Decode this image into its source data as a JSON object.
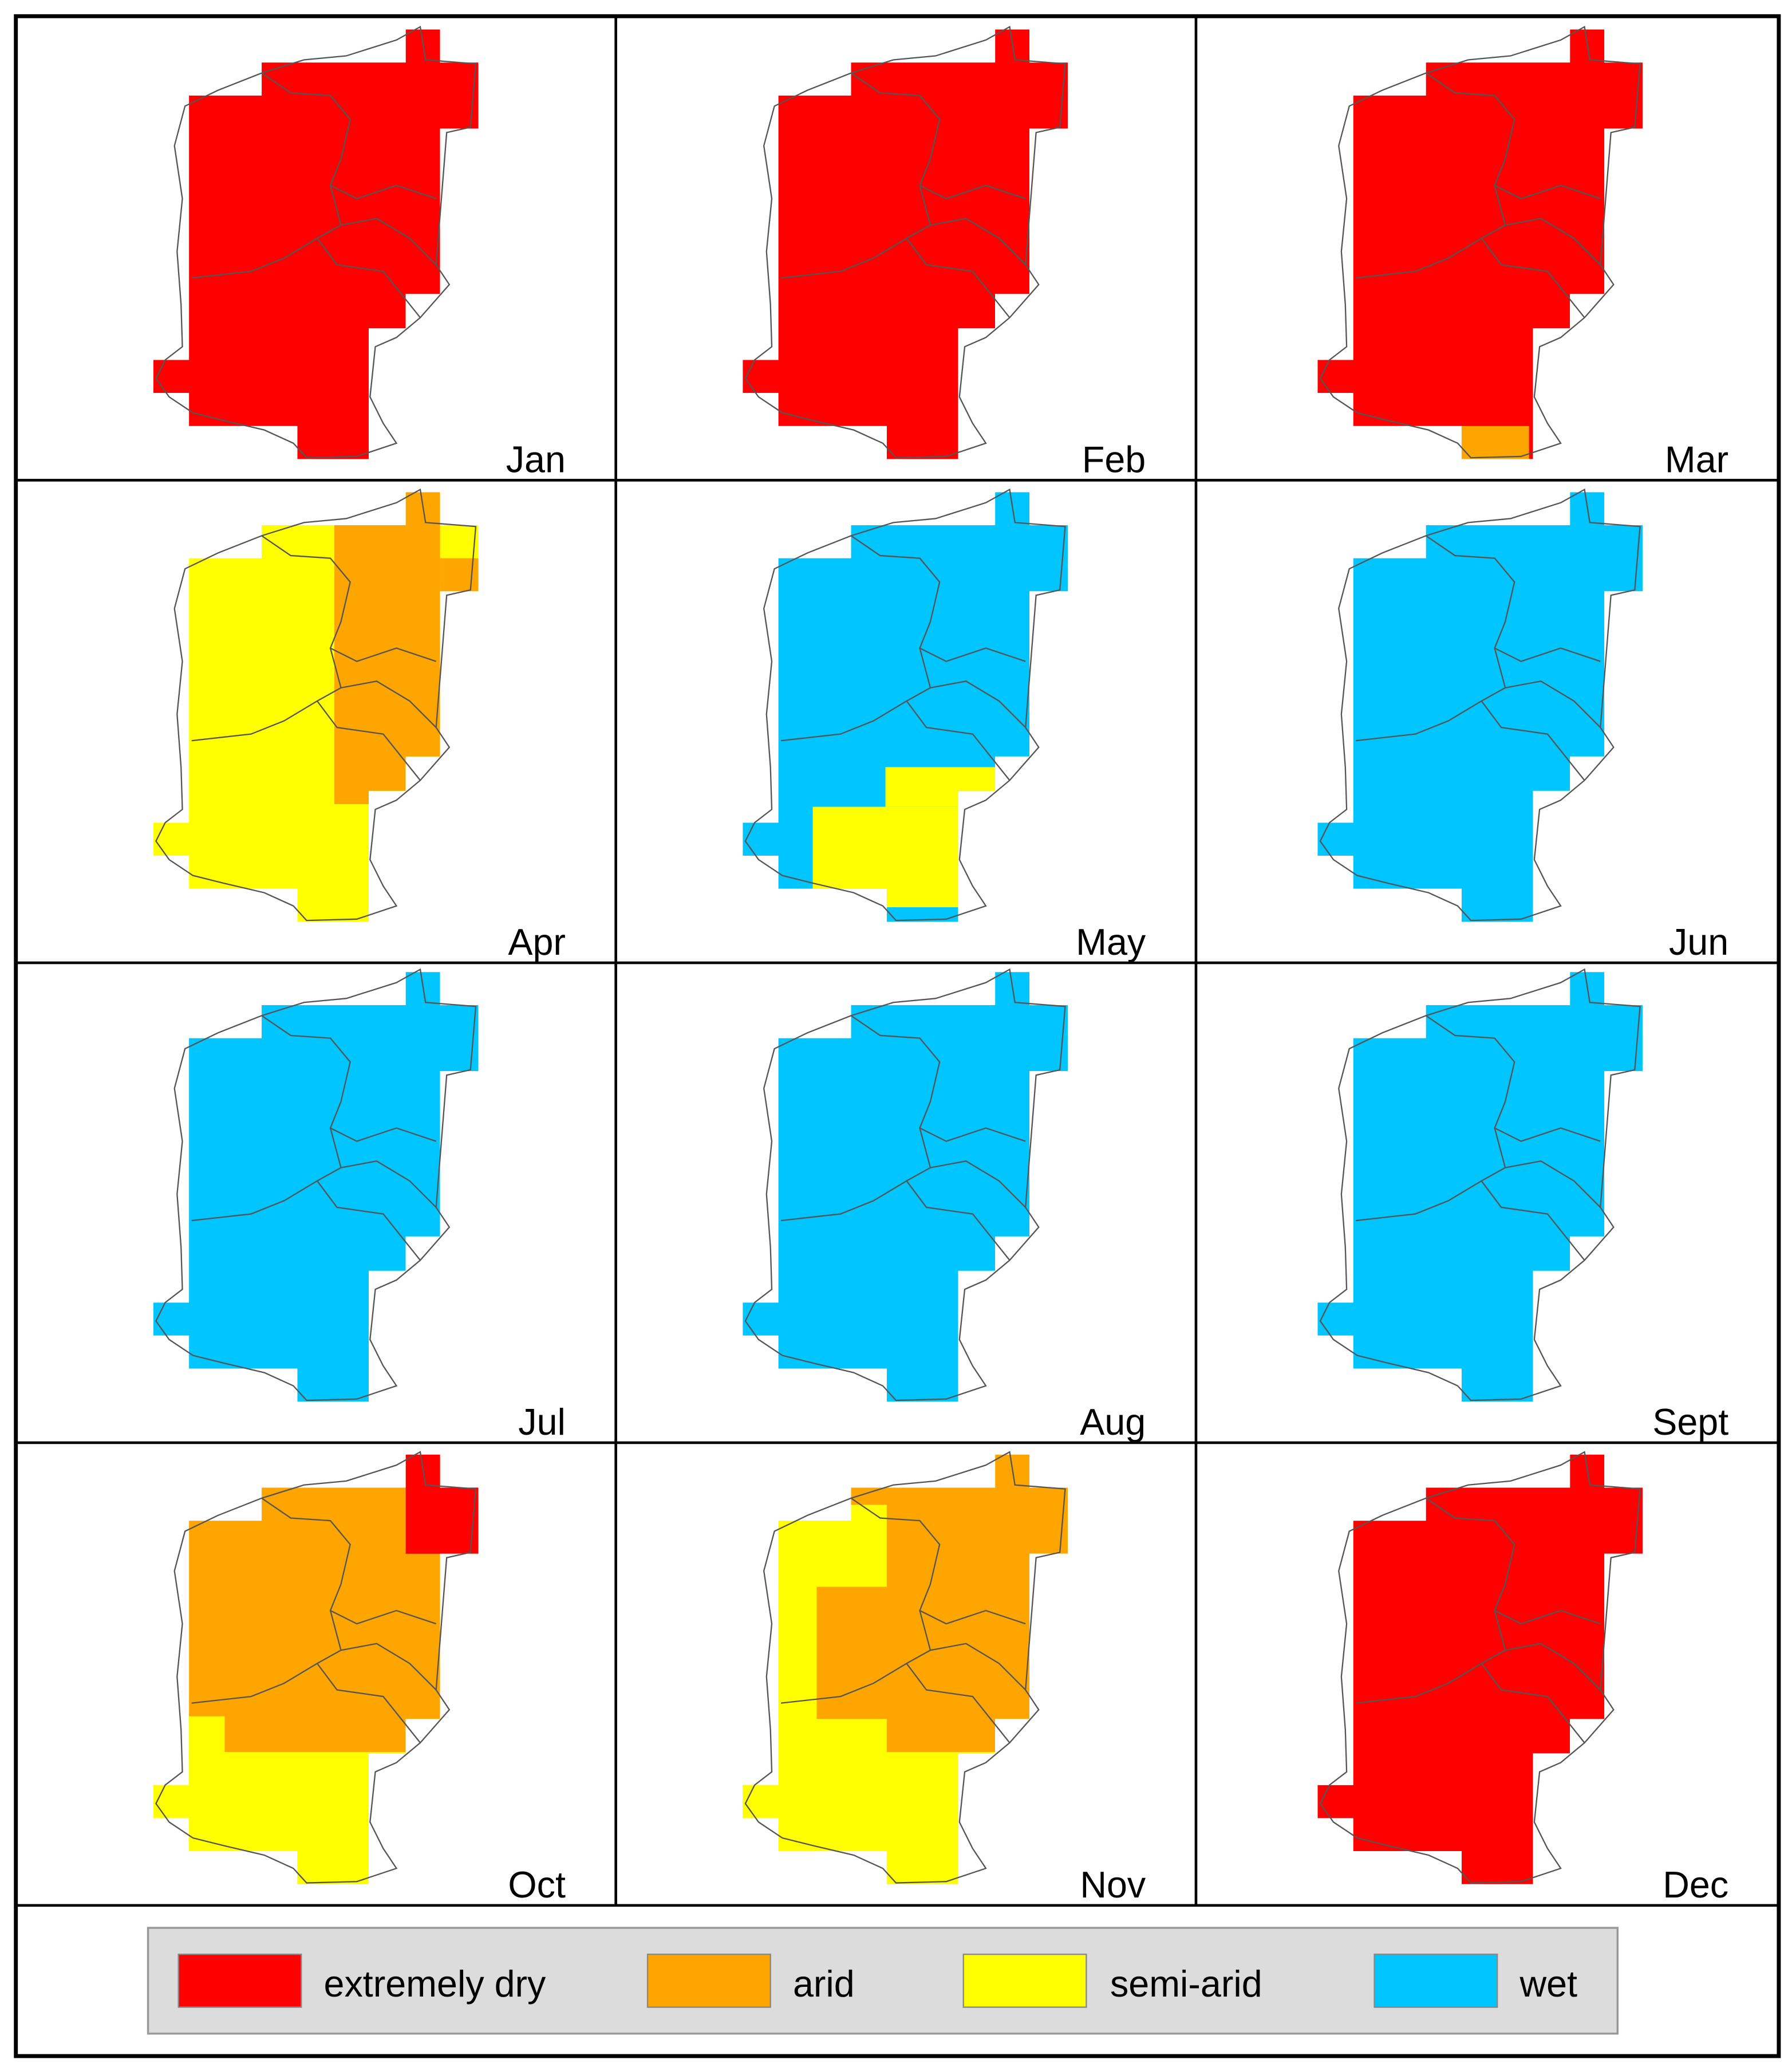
{
  "panels": [
    {
      "label": "Jan"
    },
    {
      "label": "Feb"
    },
    {
      "label": "Mar"
    },
    {
      "label": "Apr"
    },
    {
      "label": "May"
    },
    {
      "label": "Jun"
    },
    {
      "label": "Jul"
    },
    {
      "label": "Aug"
    },
    {
      "label": "Sept"
    },
    {
      "label": "Oct"
    },
    {
      "label": "Nov"
    },
    {
      "label": "Dec"
    }
  ],
  "legend": [
    {
      "label": "extremely dry",
      "color": "#ff0000"
    },
    {
      "label": "arid",
      "color": "#ffa500"
    },
    {
      "label": "semi-arid",
      "color": "#ffff00"
    },
    {
      "label": "wet",
      "color": "#00c5ff"
    }
  ]
}
